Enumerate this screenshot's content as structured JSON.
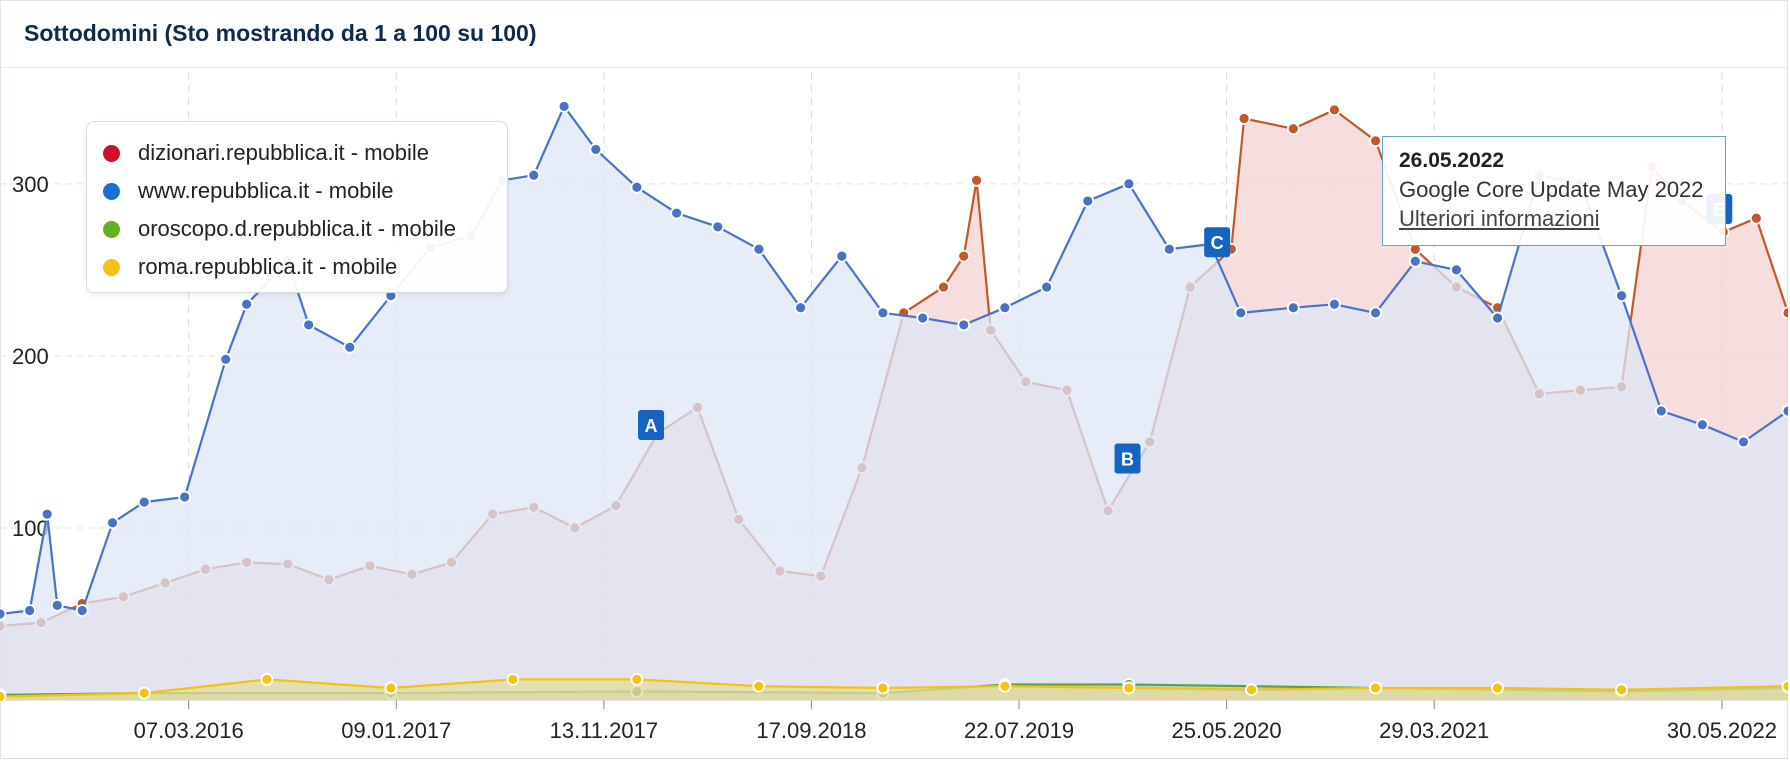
{
  "header": {
    "title": "Sottodomini (Sto mostrando da 1 a 100 su 100)"
  },
  "legend": {
    "items": [
      {
        "label": "dizionari.repubblica.it - mobile",
        "color": "#d0102c"
      },
      {
        "label": "www.repubblica.it - mobile",
        "color": "#1a6fd6"
      },
      {
        "label": "oroscopo.d.repubblica.it - mobile",
        "color": "#62b220"
      },
      {
        "label": "roma.repubblica.it - mobile",
        "color": "#f5c118"
      }
    ]
  },
  "tooltip": {
    "date": "26.05.2022",
    "description": "Google Core Update May 2022",
    "link": "Ulteriori informazioni"
  },
  "chart_data": {
    "type": "area",
    "x_start": "2015-06-01",
    "x_end": "2022-09-05",
    "ylim": [
      0,
      365
    ],
    "yticks": [
      100,
      200,
      300
    ],
    "xtick_labels": [
      "07.03.2016",
      "09.01.2017",
      "13.11.2017",
      "17.09.2018",
      "22.07.2019",
      "25.05.2020",
      "29.03.2021",
      "30.05.2022"
    ],
    "xtick_dates": [
      "2016-03-07",
      "2017-01-09",
      "2017-11-13",
      "2018-09-17",
      "2019-07-22",
      "2020-05-25",
      "2021-03-29",
      "2022-05-30"
    ],
    "grid": true,
    "legend_position": "top-left",
    "annotations": [
      {
        "label": "A",
        "date": "2018-01-22"
      },
      {
        "label": "B",
        "date": "2019-12-30"
      },
      {
        "label": "C",
        "date": "2020-05-11"
      },
      {
        "label": "E",
        "date": "2022-05-26"
      }
    ],
    "series": [
      {
        "name": "dizionari.repubblica.it - mobile",
        "line_color": "#c5572d",
        "fill_color": "#f1d3d2",
        "points": [
          [
            "2015-06-01",
            43
          ],
          [
            "2015-08-01",
            45
          ],
          [
            "2015-10-01",
            56
          ],
          [
            "2015-12-01",
            60
          ],
          [
            "2016-02-01",
            68
          ],
          [
            "2016-04-01",
            76
          ],
          [
            "2016-06-01",
            80
          ],
          [
            "2016-08-01",
            79
          ],
          [
            "2016-10-01",
            70
          ],
          [
            "2016-12-01",
            78
          ],
          [
            "2017-02-01",
            73
          ],
          [
            "2017-04-01",
            80
          ],
          [
            "2017-06-01",
            108
          ],
          [
            "2017-08-01",
            112
          ],
          [
            "2017-10-01",
            100
          ],
          [
            "2017-12-01",
            113
          ],
          [
            "2018-02-01",
            155
          ],
          [
            "2018-04-01",
            170
          ],
          [
            "2018-06-01",
            105
          ],
          [
            "2018-08-01",
            75
          ],
          [
            "2018-10-01",
            72
          ],
          [
            "2018-12-01",
            135
          ],
          [
            "2019-02-01",
            225
          ],
          [
            "2019-04-01",
            240
          ],
          [
            "2019-05-01",
            258
          ],
          [
            "2019-05-20",
            302
          ],
          [
            "2019-06-10",
            215
          ],
          [
            "2019-08-01",
            185
          ],
          [
            "2019-10-01",
            180
          ],
          [
            "2019-12-01",
            110
          ],
          [
            "2020-02-01",
            150
          ],
          [
            "2020-04-01",
            240
          ],
          [
            "2020-06-01",
            262
          ],
          [
            "2020-06-20",
            338
          ],
          [
            "2020-09-01",
            332
          ],
          [
            "2020-11-01",
            343
          ],
          [
            "2021-01-01",
            325
          ],
          [
            "2021-03-01",
            262
          ],
          [
            "2021-05-01",
            240
          ],
          [
            "2021-07-01",
            228
          ],
          [
            "2021-09-01",
            178
          ],
          [
            "2021-11-01",
            180
          ],
          [
            "2022-01-01",
            182
          ],
          [
            "2022-02-15",
            310
          ],
          [
            "2022-04-01",
            290
          ],
          [
            "2022-06-01",
            272
          ],
          [
            "2022-07-20",
            280
          ],
          [
            "2022-09-05",
            225
          ]
        ]
      },
      {
        "name": "www.repubblica.it - mobile",
        "line_color": "#4a73c8",
        "fill_color": "#dde5f6",
        "points": [
          [
            "2015-06-01",
            50
          ],
          [
            "2015-07-15",
            52
          ],
          [
            "2015-08-10",
            108
          ],
          [
            "2015-08-25",
            55
          ],
          [
            "2015-10-01",
            52
          ],
          [
            "2015-11-15",
            103
          ],
          [
            "2016-01-01",
            115
          ],
          [
            "2016-03-01",
            118
          ],
          [
            "2016-05-01",
            198
          ],
          [
            "2016-06-01",
            230
          ],
          [
            "2016-08-01",
            255
          ],
          [
            "2016-09-01",
            218
          ],
          [
            "2016-11-01",
            205
          ],
          [
            "2017-01-01",
            235
          ],
          [
            "2017-03-01",
            263
          ],
          [
            "2017-05-01",
            270
          ],
          [
            "2017-06-15",
            302
          ],
          [
            "2017-08-01",
            305
          ],
          [
            "2017-09-15",
            345
          ],
          [
            "2017-11-01",
            320
          ],
          [
            "2018-01-01",
            298
          ],
          [
            "2018-03-01",
            283
          ],
          [
            "2018-05-01",
            275
          ],
          [
            "2018-07-01",
            262
          ],
          [
            "2018-09-01",
            228
          ],
          [
            "2018-11-01",
            258
          ],
          [
            "2019-01-01",
            225
          ],
          [
            "2019-03-01",
            222
          ],
          [
            "2019-05-01",
            218
          ],
          [
            "2019-07-01",
            228
          ],
          [
            "2019-09-01",
            240
          ],
          [
            "2019-11-01",
            290
          ],
          [
            "2020-01-01",
            300
          ],
          [
            "2020-03-01",
            262
          ],
          [
            "2020-05-01",
            265
          ],
          [
            "2020-06-15",
            225
          ],
          [
            "2020-09-01",
            228
          ],
          [
            "2020-11-01",
            230
          ],
          [
            "2021-01-01",
            225
          ],
          [
            "2021-03-01",
            255
          ],
          [
            "2021-05-01",
            250
          ],
          [
            "2021-07-01",
            222
          ],
          [
            "2021-09-01",
            305
          ],
          [
            "2021-11-01",
            300
          ],
          [
            "2022-01-01",
            235
          ],
          [
            "2022-03-01",
            168
          ],
          [
            "2022-05-01",
            160
          ],
          [
            "2022-07-01",
            150
          ],
          [
            "2022-09-05",
            168
          ]
        ]
      },
      {
        "name": "oroscopo.d.repubblica.it - mobile",
        "line_color": "#5aa34a",
        "fill_color": "#c4c8a8",
        "points": [
          [
            "2015-06-01",
            3
          ],
          [
            "2016-01-01",
            4
          ],
          [
            "2017-01-01",
            4
          ],
          [
            "2018-01-01",
            5
          ],
          [
            "2019-01-01",
            4
          ],
          [
            "2019-07-01",
            9
          ],
          [
            "2020-01-01",
            9
          ],
          [
            "2021-01-01",
            7
          ],
          [
            "2022-01-01",
            5
          ],
          [
            "2022-09-05",
            7
          ]
        ]
      },
      {
        "name": "roma.repubblica.it - mobile",
        "line_color": "#f1c40f",
        "fill_color": "#e6dca2",
        "points": [
          [
            "2015-06-01",
            2
          ],
          [
            "2016-01-01",
            4
          ],
          [
            "2016-07-01",
            12
          ],
          [
            "2017-01-01",
            7
          ],
          [
            "2017-07-01",
            12
          ],
          [
            "2018-01-01",
            12
          ],
          [
            "2018-07-01",
            8
          ],
          [
            "2019-01-01",
            7
          ],
          [
            "2019-07-01",
            8
          ],
          [
            "2020-01-01",
            7
          ],
          [
            "2020-07-01",
            6
          ],
          [
            "2021-01-01",
            7
          ],
          [
            "2021-07-01",
            7
          ],
          [
            "2022-01-01",
            6
          ],
          [
            "2022-09-05",
            8
          ]
        ]
      }
    ]
  }
}
